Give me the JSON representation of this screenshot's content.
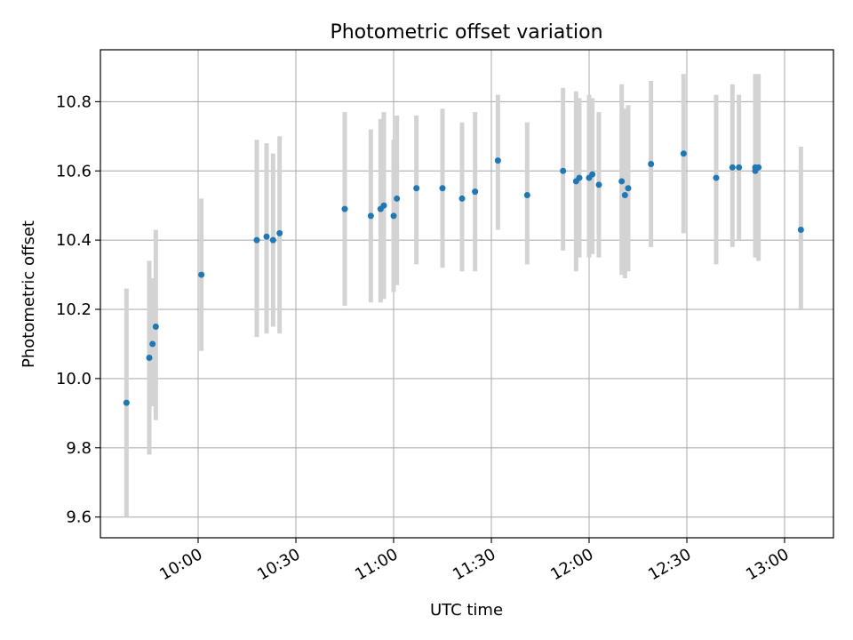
{
  "chart_data": {
    "type": "scatter",
    "title": "Photometric offset variation",
    "xlabel": "UTC time",
    "ylabel": "Photometric offset",
    "xlim": [
      "09:30",
      "13:15"
    ],
    "ylim": [
      9.54,
      10.95
    ],
    "x_ticks": [
      "10:00",
      "10:30",
      "11:00",
      "11:30",
      "12:00",
      "12:30",
      "13:00"
    ],
    "y_ticks": [
      "9.6",
      "9.8",
      "10.0",
      "10.2",
      "10.4",
      "10.6",
      "10.8"
    ],
    "grid": true,
    "colors": {
      "point": "#1f77b4",
      "errorbar": "#d3d3d3",
      "grid": "#b0b0b0"
    },
    "series": [
      {
        "points": [
          {
            "x": "09:38",
            "y": 9.93,
            "lo": 9.6,
            "hi": 10.26
          },
          {
            "x": "09:45",
            "y": 10.06,
            "lo": 9.78,
            "hi": 10.34
          },
          {
            "x": "09:46",
            "y": 10.1,
            "lo": 9.92,
            "hi": 10.29
          },
          {
            "x": "09:47",
            "y": 10.15,
            "lo": 9.88,
            "hi": 10.43
          },
          {
            "x": "10:01",
            "y": 10.3,
            "lo": 10.08,
            "hi": 10.52
          },
          {
            "x": "10:18",
            "y": 10.4,
            "lo": 10.12,
            "hi": 10.69
          },
          {
            "x": "10:21",
            "y": 10.41,
            "lo": 10.13,
            "hi": 10.68
          },
          {
            "x": "10:23",
            "y": 10.4,
            "lo": 10.15,
            "hi": 10.65
          },
          {
            "x": "10:25",
            "y": 10.42,
            "lo": 10.13,
            "hi": 10.7
          },
          {
            "x": "10:45",
            "y": 10.49,
            "lo": 10.21,
            "hi": 10.77
          },
          {
            "x": "10:53",
            "y": 10.47,
            "lo": 10.22,
            "hi": 10.72
          },
          {
            "x": "10:56",
            "y": 10.49,
            "lo": 10.22,
            "hi": 10.75
          },
          {
            "x": "10:57",
            "y": 10.5,
            "lo": 10.23,
            "hi": 10.77
          },
          {
            "x": "11:00",
            "y": 10.47,
            "lo": 10.25,
            "hi": 10.69
          },
          {
            "x": "11:01",
            "y": 10.52,
            "lo": 10.27,
            "hi": 10.76
          },
          {
            "x": "11:07",
            "y": 10.55,
            "lo": 10.33,
            "hi": 10.76
          },
          {
            "x": "11:15",
            "y": 10.55,
            "lo": 10.32,
            "hi": 10.78
          },
          {
            "x": "11:21",
            "y": 10.52,
            "lo": 10.31,
            "hi": 10.74
          },
          {
            "x": "11:25",
            "y": 10.54,
            "lo": 10.31,
            "hi": 10.77
          },
          {
            "x": "11:32",
            "y": 10.63,
            "lo": 10.43,
            "hi": 10.82
          },
          {
            "x": "11:41",
            "y": 10.53,
            "lo": 10.33,
            "hi": 10.74
          },
          {
            "x": "11:52",
            "y": 10.6,
            "lo": 10.37,
            "hi": 10.84
          },
          {
            "x": "11:56",
            "y": 10.57,
            "lo": 10.31,
            "hi": 10.83
          },
          {
            "x": "11:57",
            "y": 10.58,
            "lo": 10.35,
            "hi": 10.81
          },
          {
            "x": "12:00",
            "y": 10.58,
            "lo": 10.35,
            "hi": 10.82
          },
          {
            "x": "12:01",
            "y": 10.59,
            "lo": 10.36,
            "hi": 10.81
          },
          {
            "x": "12:03",
            "y": 10.56,
            "lo": 10.35,
            "hi": 10.77
          },
          {
            "x": "12:10",
            "y": 10.57,
            "lo": 10.3,
            "hi": 10.85
          },
          {
            "x": "12:11",
            "y": 10.53,
            "lo": 10.29,
            "hi": 10.78
          },
          {
            "x": "12:12",
            "y": 10.55,
            "lo": 10.31,
            "hi": 10.79
          },
          {
            "x": "12:19",
            "y": 10.62,
            "lo": 10.38,
            "hi": 10.86
          },
          {
            "x": "12:29",
            "y": 10.65,
            "lo": 10.42,
            "hi": 10.88
          },
          {
            "x": "12:39",
            "y": 10.58,
            "lo": 10.33,
            "hi": 10.82
          },
          {
            "x": "12:44",
            "y": 10.61,
            "lo": 10.38,
            "hi": 10.85
          },
          {
            "x": "12:46",
            "y": 10.61,
            "lo": 10.4,
            "hi": 10.82
          },
          {
            "x": "12:51",
            "y": 10.6,
            "lo": 10.35,
            "hi": 10.87
          },
          {
            "x": "12:51",
            "y": 10.61,
            "lo": 10.35,
            "hi": 10.88
          },
          {
            "x": "12:52",
            "y": 10.61,
            "lo": 10.34,
            "hi": 10.88
          },
          {
            "x": "13:05",
            "y": 10.43,
            "lo": 10.2,
            "hi": 10.67
          }
        ]
      }
    ]
  }
}
